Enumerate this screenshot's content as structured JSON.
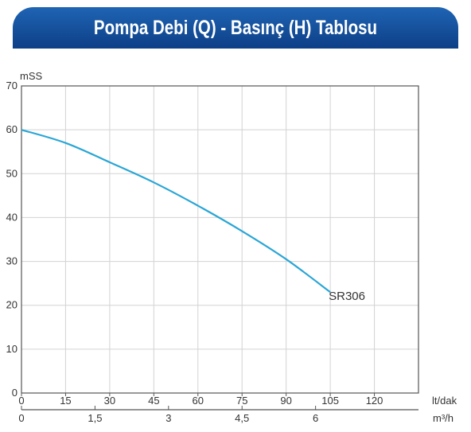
{
  "header": {
    "title": "Pompa Debi (Q) - Basınç (H) Tablosu"
  },
  "chart_data": {
    "type": "line",
    "title": "Pompa Debi (Q) - Basınç (H) Tablosu",
    "ylabel": "mSS",
    "xlabel": "lt/dak",
    "x2label": "m³/h",
    "ylim": [
      0,
      70
    ],
    "xlim": [
      0,
      135
    ],
    "x2lim": [
      0,
      8.1
    ],
    "yticks": [
      "0",
      "10",
      "20",
      "30",
      "40",
      "50",
      "60",
      "70"
    ],
    "xticks": [
      "0",
      "15",
      "30",
      "45",
      "60",
      "75",
      "90",
      "105",
      "120"
    ],
    "x2ticks": [
      "0",
      "1,5",
      "3",
      "4,5",
      "6"
    ],
    "grid": true,
    "series": [
      {
        "name": "SR306",
        "color": "#2aa6d5",
        "x": [
          0,
          15,
          30,
          45,
          60,
          75,
          90,
          105
        ],
        "y": [
          60,
          57,
          52.6,
          48,
          42.7,
          36.9,
          30.5,
          23
        ]
      }
    ]
  }
}
